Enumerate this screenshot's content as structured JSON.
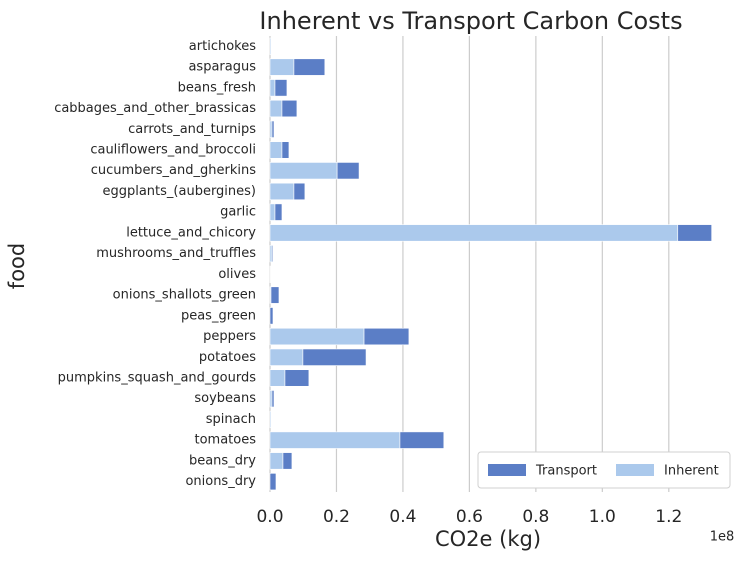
{
  "chart_data": {
    "type": "stacked_barh",
    "title": "Inherent vs Transport Carbon Costs",
    "xlabel": "CO2e (kg)",
    "ylabel": "food",
    "x_offset_label": "1e8",
    "categories": [
      "artichokes",
      "asparagus",
      "beans_fresh",
      "cabbages_and_other_brassicas",
      "carrots_and_turnips",
      "cauliflowers_and_broccoli",
      "cucumbers_and_gherkins",
      "eggplants_(aubergines)",
      "garlic",
      "lettuce_and_chicory",
      "mushrooms_and_truffles",
      "olives",
      "onions_shallots_green",
      "peas_green",
      "peppers",
      "potatoes",
      "pumpkins_squash_and_gourds",
      "soybeans",
      "spinach",
      "tomatoes",
      "beans_dry",
      "onions_dry"
    ],
    "series": [
      {
        "name": "Transport",
        "color": "#5b7ec6",
        "values": [
          0,
          0.093,
          0.036,
          0.045,
          0.006,
          0.021,
          0.066,
          0.033,
          0.021,
          0.102,
          0.003,
          0,
          0.024,
          0.009,
          0.135,
          0.19,
          0.072,
          0.006,
          0,
          0.132,
          0.027,
          0.018
        ]
      },
      {
        "name": "Inherent",
        "color": "#abc9ec",
        "values": [
          0.003,
          0.072,
          0.015,
          0.036,
          0.006,
          0.036,
          0.202,
          0.072,
          0.015,
          1.227,
          0.006,
          0.001,
          0.003,
          0,
          0.283,
          0.099,
          0.045,
          0.006,
          0.003,
          0.391,
          0.039,
          0
        ]
      }
    ],
    "xlim": [
      0,
      1.33
    ],
    "xticks": [
      {
        "value": 0,
        "label": "0.0"
      },
      0.2,
      0.4,
      0.6,
      0.8,
      {
        "value": 1,
        "label": "1.0"
      },
      1.2
    ],
    "grid": true,
    "legend": "lower right"
  }
}
